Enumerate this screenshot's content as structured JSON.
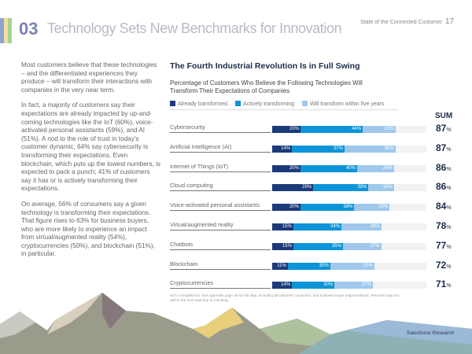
{
  "header": {
    "section_number": "03",
    "title": "Technology Sets New Benchmarks for Innovation",
    "report": "State of the Connected Customer",
    "page": "17",
    "stripe_colors": [
      "#8fa3cf",
      "#f0df9c",
      "#a9cf98"
    ]
  },
  "body": {
    "p1": "Most customers believe that these technologies – and the differentiated experiences they produce – will transform their interactions with companies in the very near term.",
    "p2": "In fact, a majority of customers say their expectations are already impacted by up-and-coming technologies like the IoT (60%), voice-activated personal assistants (59%), and AI (51%). A nod to the role of trust in today's customer dynamic, 64% say cybersecurity is transforming their expectations. Even blockchain, which puts up the lowest numbers, is expected to pack a punch; 41% of customers say it has or is actively transforming their expectations.",
    "p3": "On average, 56% of consumers say a given technology is transforming their expectations. That figure rises to 63% for business buyers, who are more likely to experience an impact from virtual/augmented reality (54%), cryptocurrencies (50%), and blockchain (51%), in particular."
  },
  "chart_data": {
    "type": "bar",
    "stacked": true,
    "orientation": "horizontal",
    "title": "The Fourth Industrial Revolution Is in Full Swing",
    "subtitle": "Percentage of Customers Who Believe the Following Technologies Will Transform Their Expectations of Companies",
    "sum_label": "SUM",
    "unit": "%",
    "categories": [
      "Cybersecurity",
      "Artificial Intelligence (AI)",
      "Internet of Things (IoT)",
      "Cloud computing",
      "Voice-activated personal assistants",
      "Virtual/augmented reality",
      "Chatbots",
      "Blockchain",
      "Cryptocurrencies"
    ],
    "series": [
      {
        "name": "Already transformed",
        "color": "#1b3a7a",
        "values": [
          20,
          14,
          20,
          29,
          20,
          15,
          15,
          11,
          14
        ]
      },
      {
        "name": "Actively transforming",
        "color": "#0c94d8",
        "values": [
          44,
          37,
          40,
          39,
          38,
          34,
          35,
          30,
          30
        ]
      },
      {
        "name": "Will transform within five years",
        "color": "#9fc8ec",
        "values": [
          23,
          36,
          26,
          18,
          25,
          28,
          27,
          31,
          27
        ]
      }
    ],
    "sums": [
      87,
      87,
      86,
      86,
      84,
      78,
      77,
      72,
      71
    ],
    "footnote": "Not a complete list. See appendix page 48 for full data, including all customer, consumer, and business buyer segmentations. Percents may not add to the sum total due to rounding."
  },
  "footer": {
    "brand": "Salesforce Research"
  }
}
